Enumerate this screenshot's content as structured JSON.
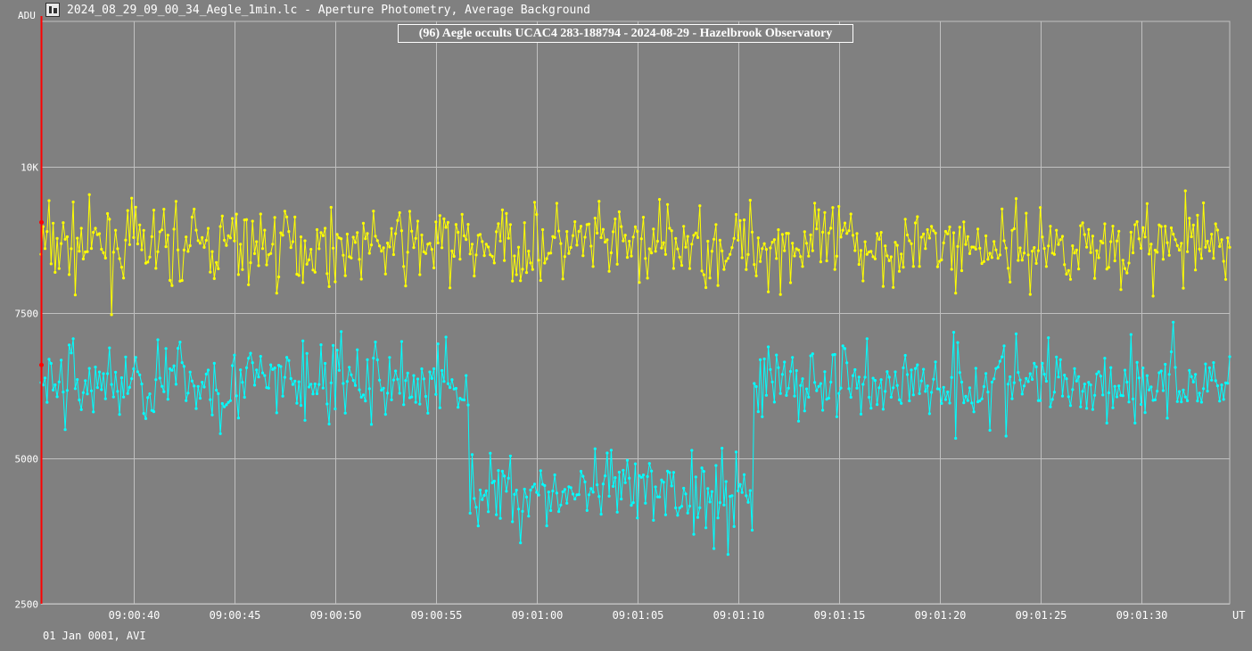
{
  "window": {
    "title": "2024_08_29_09_00_34_Aegle_1min.lc - Aperture Photometry, Average Background",
    "footer": "01 Jan 0001, AVI",
    "icon": "app-icon"
  },
  "colors": {
    "background": "#808080",
    "grid": "#c0c0c0",
    "target": "#00ffff",
    "comparison": "#ffff00",
    "marker": "#ff0000"
  },
  "chart_data": {
    "type": "line",
    "title": "(96) Aegle occults UCAC4 283-188794 - 2024-08-29 - Hazelbrook Observatory",
    "ylabel": "ADU",
    "xlabel": "UT",
    "ylim": [
      2500,
      12500
    ],
    "xlim": [
      "09:00:35.4",
      "09:01:34.4"
    ],
    "grid": true,
    "y_ticks": [
      "2500",
      "5000",
      "7500",
      "10K"
    ],
    "x_ticks": [
      "09:00:40",
      "09:00:45",
      "09:00:50",
      "09:00:55",
      "09:01:00",
      "09:01:05",
      "09:01:10",
      "09:01:15",
      "09:01:20",
      "09:01:25",
      "09:01:30"
    ],
    "sample_interval_s": 0.1,
    "series": [
      {
        "key": "target",
        "baseline": 6300,
        "noise": 650,
        "event": {
          "start": "09:00:56.7",
          "end": "09:01:10.7",
          "level": 4400
        }
      },
      {
        "key": "comparison",
        "baseline": 8650,
        "noise": 600
      }
    ],
    "marker": {
      "x": "09:00:35.4",
      "target_value": 6600,
      "comparison_value": 9050
    }
  }
}
